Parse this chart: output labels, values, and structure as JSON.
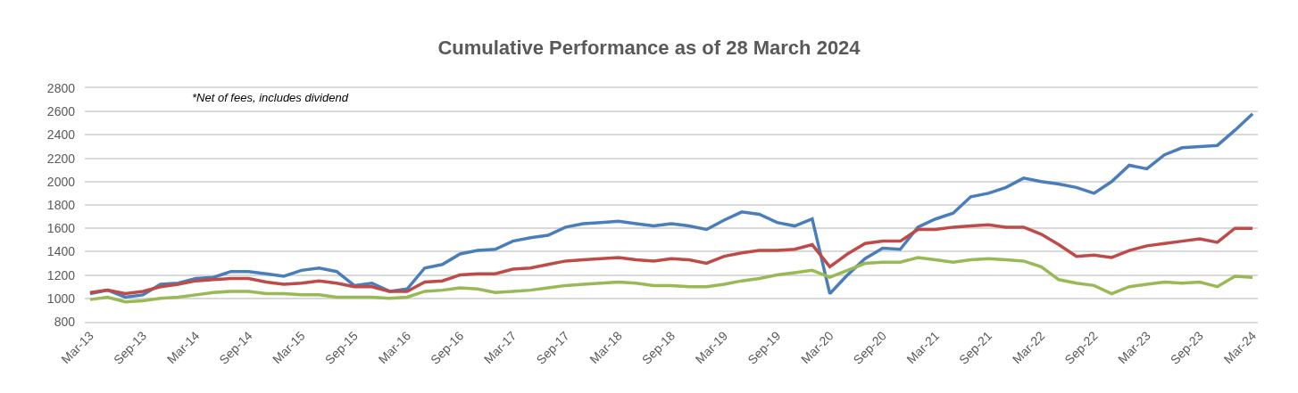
{
  "chart_data": {
    "type": "line",
    "title": "Cumulative Performance as of 28 March 2024",
    "annotations": [
      "*Net of fees, includes dividend"
    ],
    "categories": [
      "Mar-13",
      null,
      null,
      "Sep-13",
      null,
      null,
      "Mar-14",
      null,
      null,
      "Sep-14",
      null,
      null,
      "Mar-15",
      null,
      null,
      "Sep-15",
      null,
      null,
      "Mar-16",
      null,
      null,
      "Sep-16",
      null,
      null,
      "Mar-17",
      null,
      null,
      "Sep-17",
      null,
      null,
      "Mar-18",
      null,
      null,
      "Sep-18",
      null,
      null,
      "Mar-19",
      null,
      null,
      "Sep-19",
      null,
      null,
      "Mar-20",
      null,
      null,
      "Sep-20",
      null,
      null,
      "Mar-21",
      null,
      null,
      "Sep-21",
      null,
      null,
      "Mar-22",
      null,
      null,
      "Sep-22",
      null,
      null,
      "Mar-23",
      null,
      null,
      "Sep-23",
      null,
      null,
      "Mar-24"
    ],
    "series": [
      {
        "color": "#4a7ebb",
        "values": [
          1040,
          1070,
          1010,
          1030,
          1120,
          1130,
          1170,
          1180,
          1230,
          1230,
          1210,
          1190,
          1240,
          1260,
          1230,
          1110,
          1130,
          1060,
          1080,
          1260,
          1290,
          1380,
          1410,
          1420,
          1490,
          1520,
          1540,
          1610,
          1640,
          1650,
          1660,
          1640,
          1620,
          1640,
          1620,
          1590,
          1670,
          1740,
          1720,
          1650,
          1620,
          1680,
          1040,
          1200,
          1340,
          1430,
          1420,
          1610,
          1680,
          1730,
          1870,
          1900,
          1950,
          2030,
          2000,
          1980,
          1950,
          1900,
          2000,
          2140,
          2110,
          2230,
          2290,
          2300,
          2310,
          2440,
          2580
        ]
      },
      {
        "color": "#be4b48",
        "values": [
          1050,
          1070,
          1040,
          1060,
          1100,
          1120,
          1150,
          1160,
          1170,
          1170,
          1140,
          1120,
          1130,
          1150,
          1130,
          1100,
          1100,
          1060,
          1060,
          1140,
          1150,
          1200,
          1210,
          1210,
          1250,
          1260,
          1290,
          1320,
          1330,
          1340,
          1350,
          1330,
          1320,
          1340,
          1330,
          1300,
          1360,
          1390,
          1410,
          1410,
          1420,
          1460,
          1270,
          1380,
          1470,
          1490,
          1490,
          1590,
          1590,
          1610,
          1620,
          1630,
          1610,
          1610,
          1550,
          1460,
          1360,
          1370,
          1350,
          1410,
          1450,
          1470,
          1490,
          1510,
          1480,
          1600,
          1600
        ]
      },
      {
        "color": "#98b954",
        "values": [
          990,
          1010,
          970,
          980,
          1000,
          1010,
          1030,
          1050,
          1060,
          1060,
          1040,
          1040,
          1030,
          1030,
          1010,
          1010,
          1010,
          1000,
          1010,
          1060,
          1070,
          1090,
          1080,
          1050,
          1060,
          1070,
          1090,
          1110,
          1120,
          1130,
          1140,
          1130,
          1110,
          1110,
          1100,
          1100,
          1120,
          1150,
          1170,
          1200,
          1220,
          1240,
          1180,
          1240,
          1300,
          1310,
          1310,
          1350,
          1330,
          1310,
          1330,
          1340,
          1330,
          1320,
          1270,
          1160,
          1130,
          1110,
          1040,
          1100,
          1120,
          1140,
          1130,
          1140,
          1100,
          1190,
          1180
        ]
      }
    ],
    "ylim": [
      800,
      2800
    ],
    "yticks": [
      800,
      1000,
      1200,
      1400,
      1600,
      1800,
      2000,
      2200,
      2400,
      2600,
      2800
    ],
    "grid": "y",
    "marker": "none",
    "line_style": "solid"
  }
}
